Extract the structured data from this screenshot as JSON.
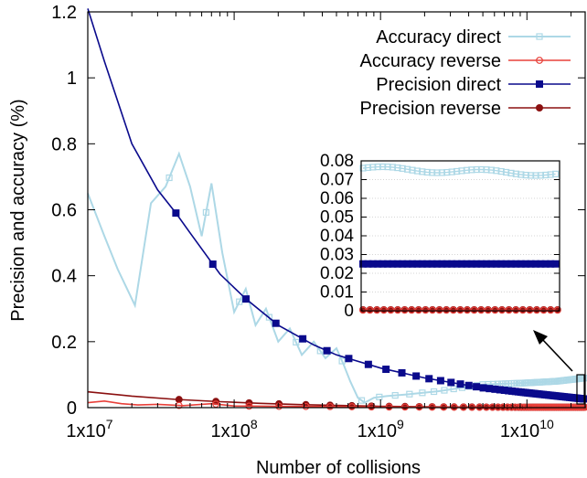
{
  "chart_data": {
    "type": "line",
    "xlabel": "Number of collisions",
    "ylabel": "Precision and accuracy (%)",
    "xscale": "log",
    "xlim": [
      10000000,
      25000000000
    ],
    "ylim": [
      0,
      1.2
    ],
    "x_ticks": [
      {
        "value": 10000000,
        "mant": "1x10",
        "exp": "7"
      },
      {
        "value": 100000000,
        "mant": "1x10",
        "exp": "8"
      },
      {
        "value": 1000000000,
        "mant": "1x10",
        "exp": "9"
      },
      {
        "value": 10000000000,
        "mant": "1x10",
        "exp": "10"
      }
    ],
    "y_ticks": [
      "0",
      "0.2",
      "0.4",
      "0.6",
      "0.8",
      "1",
      "1.2"
    ],
    "legend_position": "top-right",
    "colors": {
      "accuracy_direct": "#add8e6",
      "accuracy_reverse": "#e8403a",
      "precision_direct": "#0a0a8c",
      "precision_reverse": "#8b1010"
    },
    "series": [
      {
        "name": "Accuracy direct",
        "marker": "open-square",
        "x": [
          10000000,
          13000000,
          16000000,
          21000000,
          27000000,
          34000000,
          42000000,
          50000000,
          60000000,
          70000000,
          83000000,
          100000000,
          120000000,
          140000000,
          165000000,
          200000000,
          240000000,
          290000000,
          350000000,
          420000000,
          500000000,
          560000000,
          620000000,
          700000000,
          780000000,
          900000000,
          1100000000,
          1500000000,
          2500000000,
          5000000000,
          10000000000,
          16000000000,
          25000000000
        ],
        "y": [
          0.65,
          0.52,
          0.42,
          0.31,
          0.62,
          0.67,
          0.77,
          0.67,
          0.52,
          0.68,
          0.47,
          0.29,
          0.36,
          0.25,
          0.3,
          0.2,
          0.24,
          0.16,
          0.2,
          0.15,
          0.18,
          0.13,
          0.08,
          0.03,
          0.015,
          0.03,
          0.035,
          0.04,
          0.05,
          0.07,
          0.075,
          0.08,
          0.09
        ]
      },
      {
        "name": "Accuracy reverse",
        "marker": "open-circle",
        "x": [
          10000000,
          13000000,
          17000000,
          22000000,
          30000000,
          45000000,
          70000000,
          100000000,
          200000000,
          500000000,
          1000000000,
          5000000000,
          25000000000
        ],
        "y": [
          0.015,
          0.02,
          0.012,
          0.008,
          0.01,
          0.006,
          0.012,
          0.005,
          0.004,
          0.003,
          0.002,
          0.001,
          0.001
        ]
      },
      {
        "name": "Precision direct",
        "marker": "filled-square",
        "x": [
          10000000,
          13000000,
          20000000,
          30000000,
          40000000,
          50000000,
          80000000,
          120000000,
          200000000,
          350000000,
          500000000,
          1000000000,
          2000000000,
          5000000000,
          10000000000,
          25000000000
        ],
        "y": [
          1.21,
          1.05,
          0.8,
          0.66,
          0.59,
          0.53,
          0.405,
          0.33,
          0.25,
          0.19,
          0.16,
          0.12,
          0.09,
          0.06,
          0.045,
          0.026
        ]
      },
      {
        "name": "Precision reverse",
        "marker": "filled-circle",
        "x": [
          10000000,
          20000000,
          40000000,
          80000000,
          150000000,
          300000000,
          600000000,
          1000000000,
          3000000000,
          10000000000,
          25000000000
        ],
        "y": [
          0.048,
          0.035,
          0.025,
          0.018,
          0.013,
          0.009,
          0.006,
          0.004,
          0.002,
          0.001,
          0.001
        ]
      }
    ],
    "inset": {
      "ylim": [
        0,
        0.08
      ],
      "y_ticks": [
        "0",
        "0.01",
        "0.02",
        "0.03",
        "0.04",
        "0.05",
        "0.06",
        "0.07",
        "0.08"
      ],
      "grid": true,
      "series_values": {
        "accuracy_direct": 0.076,
        "precision_direct": 0.025,
        "precision_reverse": 0.0005,
        "accuracy_reverse": 0.0003
      }
    }
  }
}
